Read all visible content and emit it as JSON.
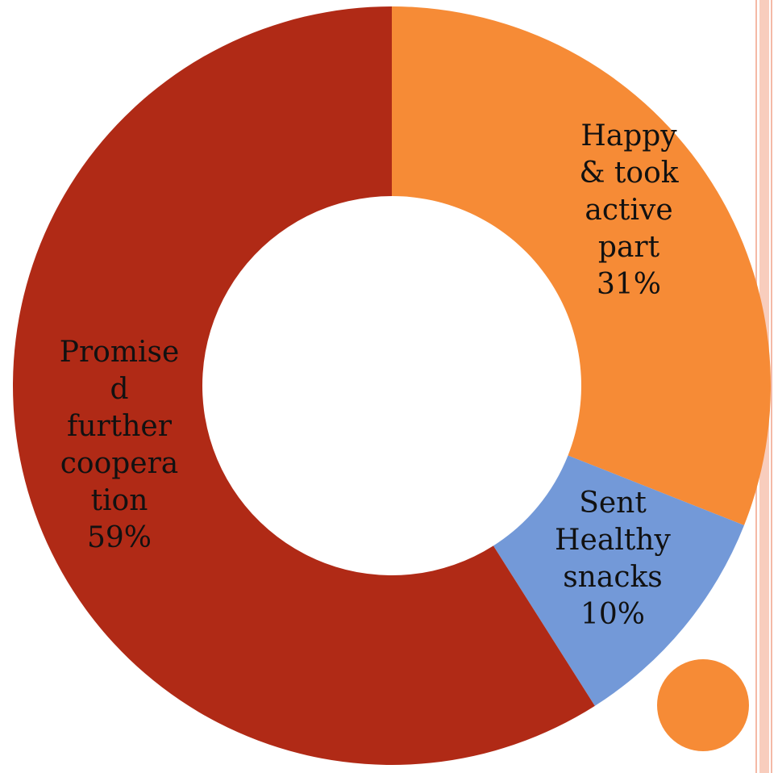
{
  "chart_data": {
    "type": "pie",
    "variant": "donut",
    "categories": [
      "Happy & took active part",
      "Sent Healthy snacks",
      "Promised further cooperation"
    ],
    "values": [
      31,
      10,
      59
    ],
    "unit": "%",
    "colors": [
      "#f68b36",
      "#7399d8",
      "#b02a16"
    ],
    "labels": [
      [
        "Happy",
        "& took",
        "active",
        "part",
        "31%"
      ],
      [
        "Sent",
        "Healthy",
        "snacks",
        "10%"
      ],
      [
        "Promise",
        "d",
        "further",
        "coopera",
        "tion",
        "59%"
      ]
    ],
    "legend": "none"
  },
  "decoration": {
    "dot_color": "#f68b36",
    "stripe_color": "#f8cdbd"
  }
}
